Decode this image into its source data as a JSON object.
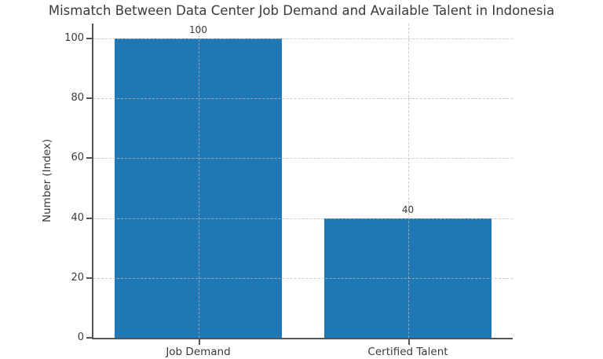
{
  "chart_data": {
    "type": "bar",
    "title": "Mismatch Between Data Center Job Demand and Available Talent in Indonesia",
    "categories": [
      "Job Demand",
      "Certified Talent"
    ],
    "values": [
      100,
      40
    ],
    "value_labels": [
      "100",
      "40"
    ],
    "xlabel": "",
    "ylabel": "Number (Index)",
    "ylim": [
      0,
      105
    ],
    "yticks": [
      0,
      20,
      40,
      60,
      80,
      100
    ],
    "bar_color": "#1f77b4",
    "grid": true,
    "grid_style": "dashed",
    "legend": "none"
  }
}
